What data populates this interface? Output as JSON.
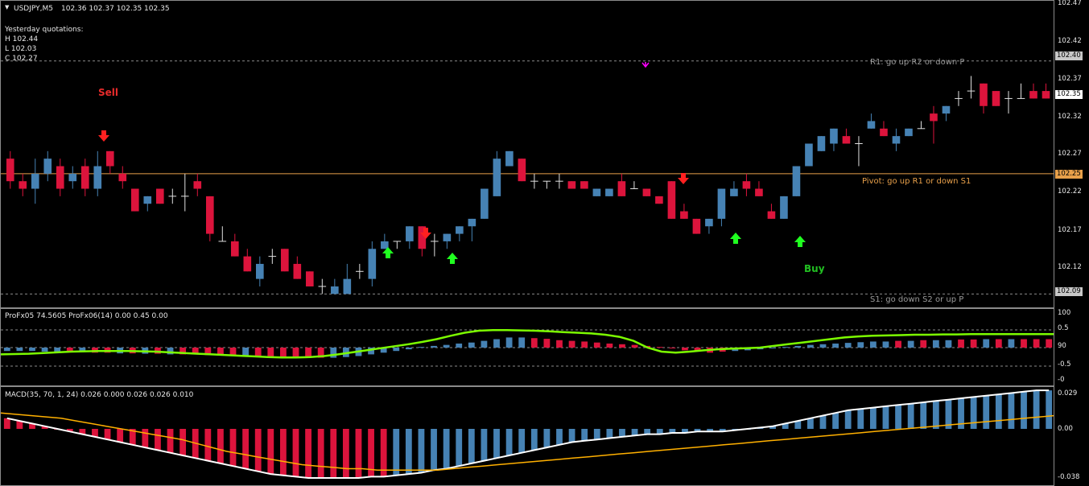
{
  "main": {
    "symbol_title": "USDJPY,M5",
    "ohlc": "102.36 102.37 102.35 102.35",
    "yesterday_title": "Yesterday quotations:",
    "yesterday_h": "H 102.44",
    "yesterday_l": "L 102.03",
    "yesterday_c": "C 102.27",
    "sell_label": "Sell",
    "buy_label": "Buy",
    "r1_text": "R1: go up R2 or down P",
    "pivot_text": "Pivot: go up R1 or down S1",
    "s1_text": "S1: go down S2 or up P",
    "r1_value": "102.40",
    "pivot_value": "102.25",
    "s1_value": "102.09",
    "current_price": "102.35",
    "axis_ticks": [
      "102.47",
      "102.42",
      "102.37",
      "102.32",
      "102.27",
      "102.22",
      "102.17",
      "102.12"
    ],
    "colors": {
      "bull": "#4682b4",
      "bear": "#dc143c",
      "pivot": "#e8a04a",
      "r1": "#a0a0a0",
      "sell_arrow": "#ff2020",
      "buy_arrow": "#20ff20",
      "magenta": "#ff00ff"
    }
  },
  "osc": {
    "title": "ProFx05 74.5605  ProFx06(14) 0.00 0.45 0.00",
    "axis_ticks": [
      "100",
      "0.5",
      "90",
      "-0.5",
      "-0"
    ]
  },
  "macd": {
    "title": "MACD(35, 70, 1, 24) 0.026 0.000 0.026 0.026 0.010",
    "axis_ticks": [
      "0.029",
      "0.00",
      "-0.038"
    ]
  },
  "chart_data": {
    "type": "candlestick",
    "candles_ohlc": [
      [
        102.27,
        102.28,
        102.23,
        102.24
      ],
      [
        102.24,
        102.25,
        102.22,
        102.23
      ],
      [
        102.23,
        102.27,
        102.21,
        102.25
      ],
      [
        102.25,
        102.28,
        102.24,
        102.27
      ],
      [
        102.26,
        102.27,
        102.22,
        102.23
      ],
      [
        102.24,
        102.26,
        102.23,
        102.25
      ],
      [
        102.26,
        102.27,
        102.22,
        102.23
      ],
      [
        102.23,
        102.28,
        102.22,
        102.26
      ],
      [
        102.28,
        102.28,
        102.25,
        102.26
      ],
      [
        102.25,
        102.26,
        102.23,
        102.24
      ],
      [
        102.23,
        102.23,
        102.2,
        102.2
      ],
      [
        102.21,
        102.22,
        102.2,
        102.22
      ],
      [
        102.23,
        102.23,
        102.21,
        102.21
      ],
      [
        102.22,
        102.23,
        102.21,
        102.22
      ],
      [
        102.22,
        102.25,
        102.2,
        102.22
      ],
      [
        102.24,
        102.25,
        102.22,
        102.23
      ],
      [
        102.22,
        102.22,
        102.16,
        102.17
      ],
      [
        102.16,
        102.18,
        102.16,
        102.16
      ],
      [
        102.16,
        102.17,
        102.14,
        102.14
      ],
      [
        102.14,
        102.15,
        102.12,
        102.12
      ],
      [
        102.11,
        102.14,
        102.1,
        102.13
      ],
      [
        102.14,
        102.15,
        102.13,
        102.14
      ],
      [
        102.15,
        102.15,
        102.12,
        102.12
      ],
      [
        102.13,
        102.14,
        102.11,
        102.11
      ],
      [
        102.12,
        102.12,
        102.1,
        102.1
      ],
      [
        102.1,
        102.11,
        102.09,
        102.1
      ],
      [
        102.09,
        102.11,
        102.09,
        102.1
      ],
      [
        102.09,
        102.13,
        102.09,
        102.11
      ],
      [
        102.12,
        102.13,
        102.11,
        102.12
      ],
      [
        102.11,
        102.16,
        102.1,
        102.15
      ],
      [
        102.15,
        102.17,
        102.15,
        102.16
      ],
      [
        102.16,
        102.16,
        102.15,
        102.16
      ],
      [
        102.16,
        102.18,
        102.15,
        102.18
      ],
      [
        102.18,
        102.18,
        102.14,
        102.15
      ],
      [
        102.16,
        102.17,
        102.14,
        102.16
      ],
      [
        102.16,
        102.17,
        102.15,
        102.17
      ],
      [
        102.17,
        102.18,
        102.16,
        102.18
      ],
      [
        102.18,
        102.19,
        102.16,
        102.19
      ],
      [
        102.19,
        102.23,
        102.19,
        102.23
      ],
      [
        102.22,
        102.28,
        102.22,
        102.27
      ],
      [
        102.26,
        102.28,
        102.26,
        102.28
      ],
      [
        102.27,
        102.27,
        102.24,
        102.24
      ],
      [
        102.24,
        102.25,
        102.23,
        102.24
      ],
      [
        102.24,
        102.24,
        102.23,
        102.24
      ],
      [
        102.24,
        102.25,
        102.23,
        102.24
      ],
      [
        102.24,
        102.24,
        102.23,
        102.23
      ],
      [
        102.24,
        102.24,
        102.23,
        102.23
      ],
      [
        102.22,
        102.23,
        102.22,
        102.23
      ],
      [
        102.22,
        102.23,
        102.22,
        102.23
      ],
      [
        102.24,
        102.25,
        102.22,
        102.22
      ],
      [
        102.23,
        102.24,
        102.23,
        102.23
      ],
      [
        102.23,
        102.23,
        102.22,
        102.22
      ],
      [
        102.22,
        102.22,
        102.21,
        102.21
      ],
      [
        102.24,
        102.24,
        102.19,
        102.19
      ],
      [
        102.2,
        102.21,
        102.19,
        102.19
      ],
      [
        102.19,
        102.19,
        102.17,
        102.17
      ],
      [
        102.18,
        102.19,
        102.17,
        102.19
      ],
      [
        102.19,
        102.23,
        102.18,
        102.23
      ],
      [
        102.22,
        102.24,
        102.22,
        102.23
      ],
      [
        102.24,
        102.25,
        102.22,
        102.23
      ],
      [
        102.23,
        102.24,
        102.22,
        102.22
      ],
      [
        102.2,
        102.21,
        102.19,
        102.19
      ],
      [
        102.19,
        102.22,
        102.19,
        102.22
      ],
      [
        102.22,
        102.26,
        102.22,
        102.26
      ],
      [
        102.26,
        102.29,
        102.26,
        102.29
      ],
      [
        102.28,
        102.3,
        102.28,
        102.3
      ],
      [
        102.29,
        102.31,
        102.28,
        102.31
      ],
      [
        102.3,
        102.31,
        102.29,
        102.29
      ],
      [
        102.29,
        102.3,
        102.26,
        102.29
      ],
      [
        102.31,
        102.33,
        102.31,
        102.32
      ],
      [
        102.31,
        102.32,
        102.3,
        102.3
      ],
      [
        102.29,
        102.31,
        102.28,
        102.3
      ],
      [
        102.3,
        102.31,
        102.3,
        102.31
      ],
      [
        102.31,
        102.32,
        102.31,
        102.31
      ],
      [
        102.33,
        102.34,
        102.29,
        102.32
      ],
      [
        102.33,
        102.34,
        102.32,
        102.34
      ],
      [
        102.35,
        102.36,
        102.34,
        102.35
      ],
      [
        102.36,
        102.38,
        102.35,
        102.36
      ],
      [
        102.37,
        102.37,
        102.33,
        102.34
      ],
      [
        102.36,
        102.36,
        102.34,
        102.34
      ],
      [
        102.35,
        102.36,
        102.33,
        102.35
      ],
      [
        102.35,
        102.37,
        102.35,
        102.35
      ],
      [
        102.36,
        102.37,
        102.35,
        102.35
      ],
      [
        102.36,
        102.37,
        102.35,
        102.35
      ]
    ],
    "pivot": 102.25,
    "r1": 102.4,
    "s1": 102.09,
    "ylim": [
      102.07,
      102.48
    ],
    "osc_hist": [
      -0.1,
      -0.1,
      -0.1,
      -0.12,
      -0.12,
      -0.13,
      -0.13,
      -0.15,
      -0.15,
      -0.17,
      -0.17,
      -0.18,
      -0.18,
      -0.2,
      -0.2,
      -0.2,
      -0.22,
      -0.22,
      -0.24,
      -0.24,
      -0.26,
      -0.28,
      -0.28,
      -0.3,
      -0.3,
      -0.3,
      -0.3,
      -0.28,
      -0.25,
      -0.2,
      -0.15,
      -0.1,
      -0.05,
      0.02,
      0.05,
      0.08,
      0.12,
      0.15,
      0.2,
      0.25,
      0.3,
      0.3,
      0.28,
      0.26,
      0.22,
      0.2,
      0.18,
      0.15,
      0.12,
      0.1,
      0.08,
      0.05,
      0.02,
      -0.02,
      -0.08,
      -0.12,
      -0.15,
      -0.12,
      -0.1,
      -0.08,
      -0.05,
      -0.02,
      0.02,
      0.05,
      0.08,
      0.1,
      0.12,
      0.14,
      0.16,
      0.18,
      0.18,
      0.2,
      0.2,
      0.22,
      0.22,
      0.22,
      0.24,
      0.24,
      0.25,
      0.25,
      0.25,
      0.25,
      0.25,
      0.25
    ],
    "osc_colors": "bbbbbrbrrbrbrbrrrrrbrrrrrrbbbbbbbbbbbbbbbbrrrrrrrrrrrrrrrrbbbbbbbbbbbbbrbrbbrrbrbrrrrbrr",
    "osc_line": [
      -0.2,
      -0.19,
      -0.18,
      -0.16,
      -0.14,
      -0.12,
      -0.11,
      -0.1,
      -0.1,
      -0.1,
      -0.11,
      -0.12,
      -0.14,
      -0.16,
      -0.18,
      -0.2,
      -0.22,
      -0.24,
      -0.26,
      -0.28,
      -0.29,
      -0.29,
      -0.28,
      -0.25,
      -0.2,
      -0.14,
      -0.08,
      -0.02,
      0.04,
      0.1,
      0.17,
      0.25,
      0.35,
      0.44,
      0.5,
      0.52,
      0.52,
      0.51,
      0.5,
      0.48,
      0.46,
      0.44,
      0.42,
      0.38,
      0.32,
      0.2,
      0.0,
      -0.12,
      -0.15,
      -0.12,
      -0.08,
      -0.05,
      -0.03,
      -0.02,
      0.0,
      0.05,
      0.1,
      0.15,
      0.2,
      0.25,
      0.3,
      0.33,
      0.35,
      0.36,
      0.37,
      0.38,
      0.38,
      0.39,
      0.39,
      0.4,
      0.4,
      0.4,
      0.4,
      0.4,
      0.4,
      0.4
    ],
    "macd_hist": [
      0.008,
      0.006,
      0.004,
      0.002,
      0.0,
      -0.002,
      -0.004,
      -0.006,
      -0.008,
      -0.01,
      -0.012,
      -0.014,
      -0.016,
      -0.018,
      -0.02,
      -0.022,
      -0.024,
      -0.026,
      -0.028,
      -0.03,
      -0.032,
      -0.034,
      -0.035,
      -0.036,
      -0.037,
      -0.037,
      -0.037,
      -0.037,
      -0.037,
      -0.036,
      -0.036,
      -0.035,
      -0.034,
      -0.033,
      -0.031,
      -0.03,
      -0.028,
      -0.026,
      -0.024,
      -0.022,
      -0.02,
      -0.018,
      -0.016,
      -0.014,
      -0.012,
      -0.01,
      -0.009,
      -0.008,
      -0.007,
      -0.006,
      -0.005,
      -0.004,
      -0.004,
      -0.003,
      -0.003,
      -0.002,
      -0.002,
      -0.002,
      -0.001,
      0.0,
      0.001,
      0.002,
      0.004,
      0.006,
      0.008,
      0.01,
      0.012,
      0.014,
      0.015,
      0.016,
      0.017,
      0.018,
      0.019,
      0.02,
      0.021,
      0.022,
      0.023,
      0.024,
      0.025,
      0.026,
      0.027,
      0.028,
      0.029,
      0.029
    ],
    "macd_colors": "rrrrrrrrrrrrrrrrrrrrrrrrrrrrrrrbbbbbbbbbbbbbbbbbbbbbbbbbbbbbbbbbbbbbbbbbbbbbbbbbbbbbbbbbbb",
    "macd_signal": [
      0.012,
      0.011,
      0.01,
      0.009,
      0.008,
      0.006,
      0.004,
      0.002,
      0.0,
      -0.002,
      -0.004,
      -0.006,
      -0.008,
      -0.011,
      -0.014,
      -0.017,
      -0.019,
      -0.021,
      -0.023,
      -0.025,
      -0.027,
      -0.028,
      -0.029,
      -0.03,
      -0.03,
      -0.031,
      -0.031,
      -0.031,
      -0.031,
      -0.031,
      -0.03,
      -0.029,
      -0.028,
      -0.027,
      -0.026,
      -0.025,
      -0.024,
      -0.023,
      -0.022,
      -0.021,
      -0.02,
      -0.019,
      -0.018,
      -0.017,
      -0.016,
      -0.015,
      -0.014,
      -0.013,
      -0.012,
      -0.011,
      -0.01,
      -0.009,
      -0.008,
      -0.007,
      -0.006,
      -0.005,
      -0.004,
      -0.003,
      -0.002,
      -0.001,
      0.0,
      0.001,
      0.002,
      0.003,
      0.004,
      0.005,
      0.006,
      0.007,
      0.008,
      0.009,
      0.01
    ]
  }
}
